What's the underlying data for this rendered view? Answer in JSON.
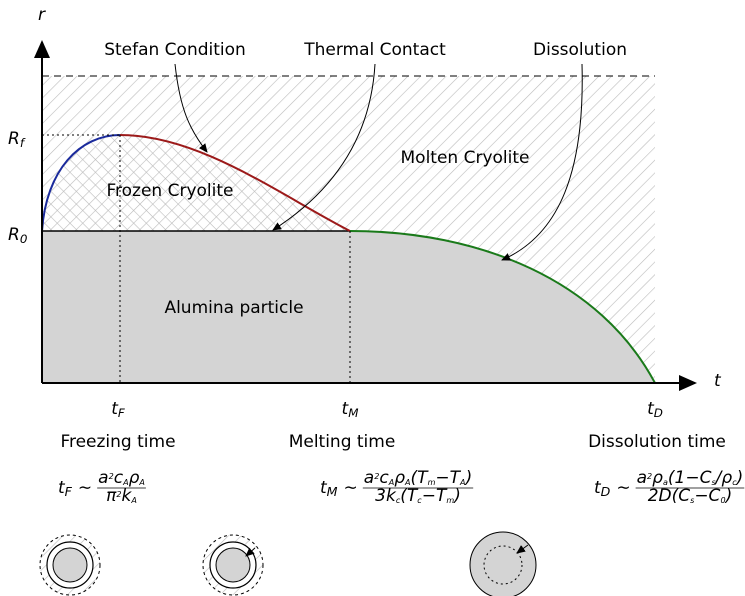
{
  "axes": {
    "y_label": "r",
    "x_label": "t"
  },
  "annotations": [
    {
      "label": "Stefan Condition"
    },
    {
      "label": "Thermal Contact"
    },
    {
      "label": "Dissolution"
    }
  ],
  "levels": [
    [
      {
        "t": "R"
      },
      {
        "sub": "f"
      }
    ],
    [
      {
        "t": "R"
      },
      {
        "sub": "0"
      }
    ]
  ],
  "regions": [
    "Molten Cryolite",
    "Frozen Cryolite",
    "Alumina particle"
  ],
  "times": [
    {
      "symbol": [
        {
          "t": "t"
        },
        {
          "sub": "F"
        }
      ],
      "name": "Freezing time",
      "formula": {
        "lhs": [
          {
            "t": "t"
          },
          {
            "sub": "F"
          }
        ],
        "rel": "∼",
        "numerator": [
          {
            "t": "a"
          },
          {
            "sup": "2"
          },
          {
            "t": "c"
          },
          {
            "sub": "A"
          },
          {
            "t": "ρ"
          },
          {
            "sub": "A"
          }
        ],
        "denominator": [
          {
            "t": "π"
          },
          {
            "sup": "2"
          },
          {
            "t": "k"
          },
          {
            "sub": "A"
          }
        ]
      }
    },
    {
      "symbol": [
        {
          "t": "t"
        },
        {
          "sub": "M"
        }
      ],
      "name": "Melting time",
      "formula": {
        "lhs": [
          {
            "t": "t"
          },
          {
            "sub": "M"
          }
        ],
        "rel": "∼",
        "numerator": [
          {
            "t": "a"
          },
          {
            "sup": "2"
          },
          {
            "t": "c"
          },
          {
            "sub": "A"
          },
          {
            "t": "ρ"
          },
          {
            "sub": "A"
          },
          {
            "t": "(T"
          },
          {
            "sub": "m"
          },
          {
            "t": "−T"
          },
          {
            "sub": "A"
          },
          {
            "t": ")"
          }
        ],
        "denominator": [
          {
            "t": "3k"
          },
          {
            "sub": "c"
          },
          {
            "t": "(T"
          },
          {
            "sub": "c"
          },
          {
            "t": "−T"
          },
          {
            "sub": "m"
          },
          {
            "t": ")"
          }
        ]
      }
    },
    {
      "symbol": [
        {
          "t": "t"
        },
        {
          "sub": "D"
        }
      ],
      "name": "Dissolution time",
      "formula": {
        "lhs": [
          {
            "t": "t"
          },
          {
            "sub": "D"
          }
        ],
        "rel": "∼",
        "numerator": [
          {
            "t": "a"
          },
          {
            "sup": "2"
          },
          {
            "t": "ρ"
          },
          {
            "sub": "a"
          },
          {
            "t": "(1−C"
          },
          {
            "sub": "s"
          },
          {
            "t": "/ρ"
          },
          {
            "sub": "c"
          },
          {
            "t": ")"
          }
        ],
        "denominator": [
          {
            "t": "2D(C"
          },
          {
            "sub": "s"
          },
          {
            "t": "−C"
          },
          {
            "sub": "0"
          },
          {
            "t": ")"
          }
        ]
      }
    }
  ]
}
